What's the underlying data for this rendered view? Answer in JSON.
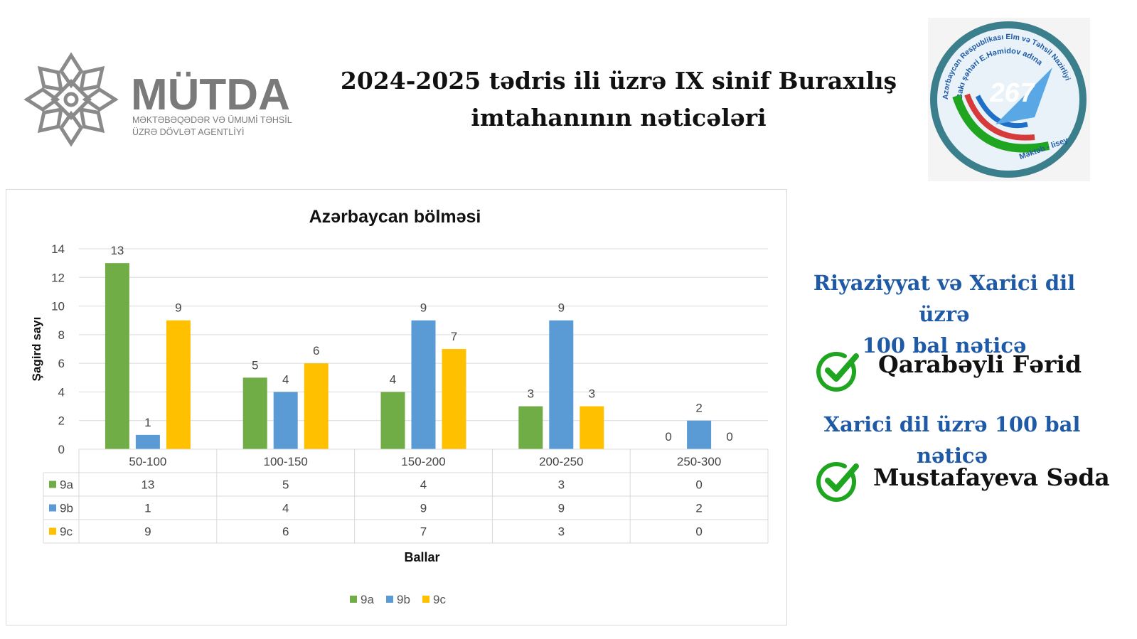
{
  "header": {
    "title_line1": "2024-2025 tədris ili üzrə IX sinif Buraxılış",
    "title_line2": "imtahanının nəticələri"
  },
  "logo": {
    "name": "MÜTDA",
    "sub_line1": "MƏKTƏBƏQƏDƏR VƏ ÜMUMİ TƏHSİL",
    "sub_line2": "ÜZRƏ DÖVLƏT AGENTLİYİ",
    "icon": "ornament-logo-icon"
  },
  "seal": {
    "number": "267",
    "arc_text": "Azərbaycan Respublikası Elm və Təhsil Nazirliyi",
    "arc_text2": "Bakı şəhəri E.Həmidov adına",
    "bottom_text": "Məktəb - lisey",
    "icon": "school-seal-icon"
  },
  "sidebar": {
    "heading1_line1": "Riyaziyyat və Xarici dil üzrə",
    "heading1_line2": "100 bal nəticə",
    "student1": "Qarabəyli Fərid",
    "heading2": "Xarici dil üzrə 100 bal nəticə",
    "student2": "Mustafayeva Səda",
    "check_icon": "checkmark-circle-icon",
    "colors": {
      "heading": "#1f5aa6",
      "check": "#1fa51f"
    }
  },
  "chart_data": {
    "type": "bar",
    "title": "Azərbaycan bölməsi",
    "xlabel": "Ballar",
    "ylabel": "Şagird sayı",
    "ylim": [
      0,
      14
    ],
    "yticks": [
      0,
      2,
      4,
      6,
      8,
      10,
      12,
      14
    ],
    "categories": [
      "50-100",
      "100-150",
      "150-200",
      "200-250",
      "250-300"
    ],
    "series": [
      {
        "name": "9a",
        "values": [
          13,
          5,
          4,
          3,
          0
        ],
        "color": "#70ad47"
      },
      {
        "name": "9b",
        "values": [
          1,
          4,
          9,
          9,
          2
        ],
        "color": "#5b9bd5"
      },
      {
        "name": "9c",
        "values": [
          9,
          6,
          7,
          3,
          0
        ],
        "color": "#ffc000"
      }
    ],
    "grid": true,
    "data_table": true,
    "legend": "bottom"
  }
}
